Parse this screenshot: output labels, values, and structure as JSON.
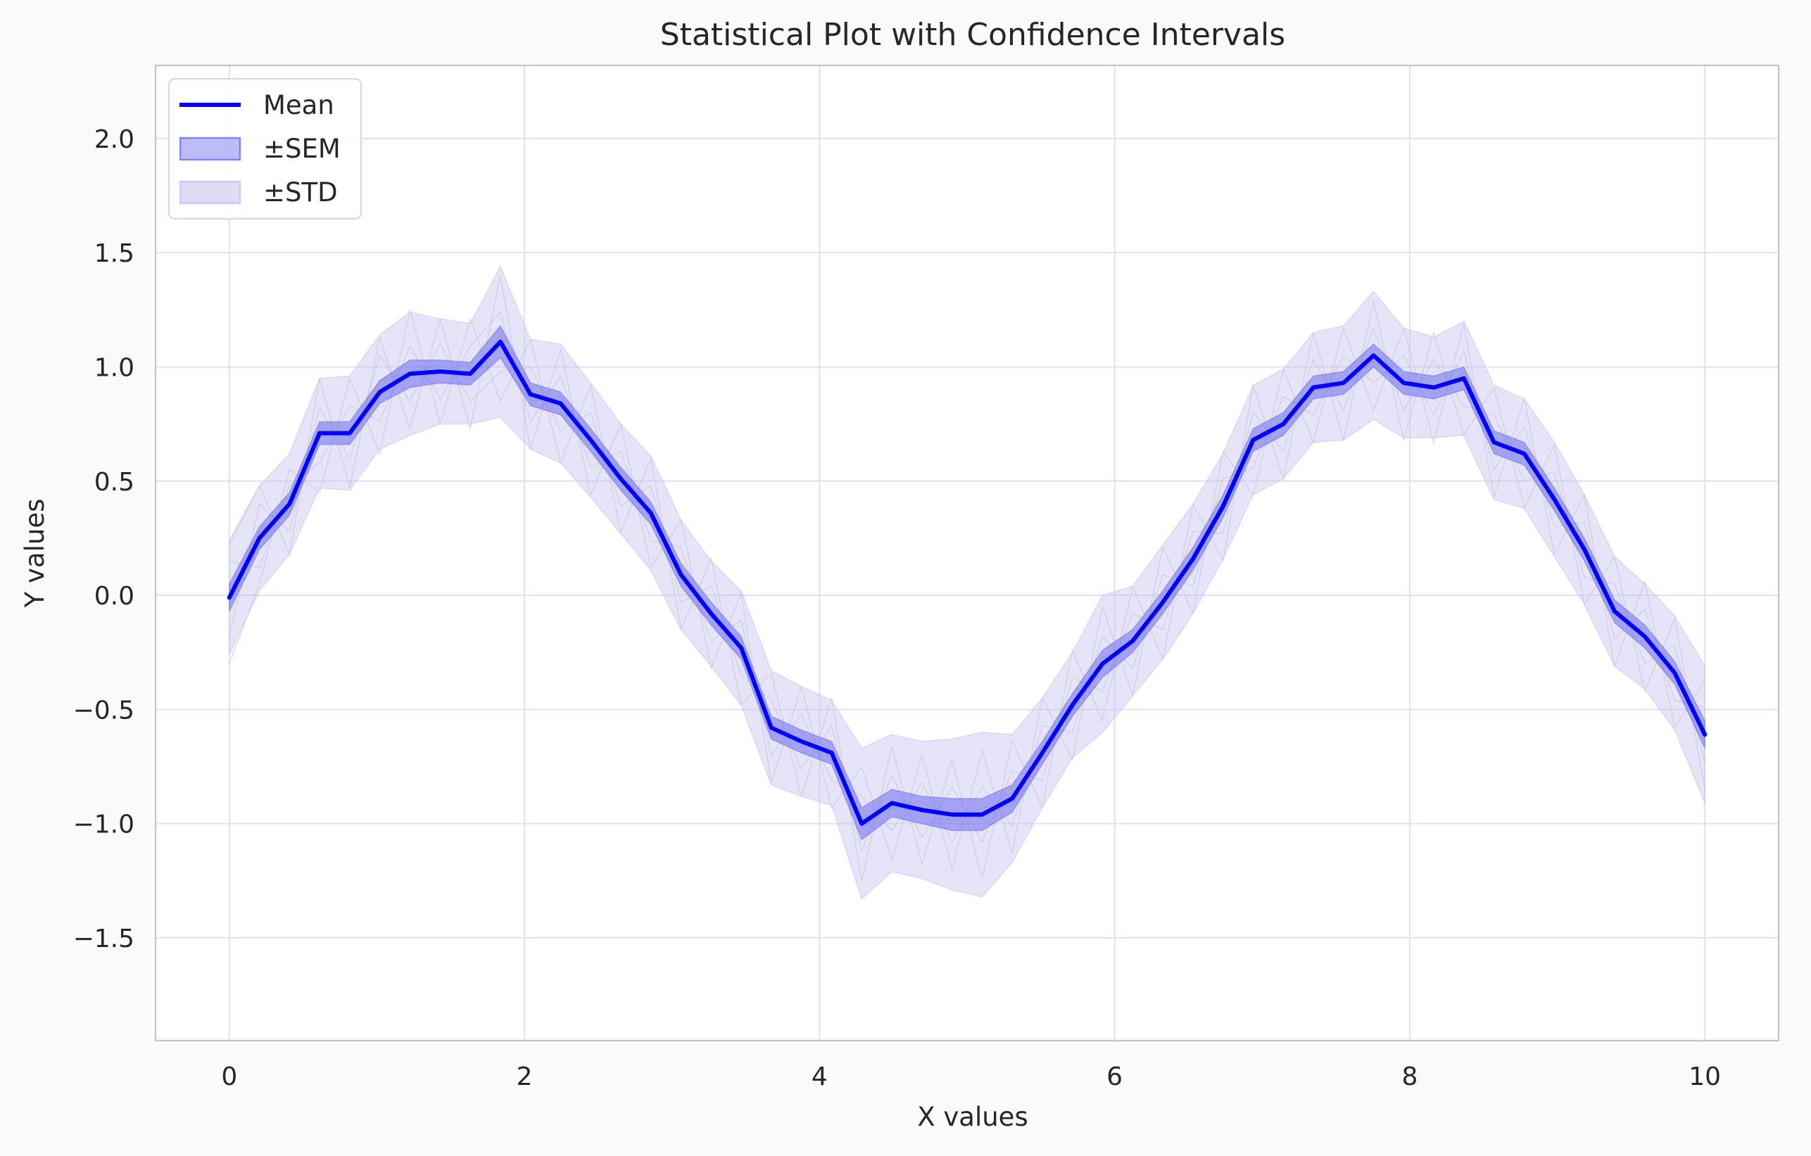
{
  "colors": {
    "background": "#fbfbfd",
    "plot_background": "#ffffff",
    "axes_edge": "#c4c4c8",
    "grid": "#e2e0f6",
    "mean_line": "#0000ff",
    "sem_fill": "#6b6bf0",
    "std_fill": "#c8c6ee",
    "trials": "#a8a6b6",
    "text": "#262626"
  },
  "chart_data": {
    "type": "line",
    "title": "Statistical Plot with Confidence Intervals",
    "xlabel": "X values",
    "ylabel": "Y values",
    "xlim": [
      -0.5,
      10.5
    ],
    "ylim": [
      -1.95,
      2.32
    ],
    "xticks": [
      0,
      2,
      4,
      6,
      8,
      10
    ],
    "xtick_labels": [
      "0",
      "2",
      "4",
      "6",
      "8",
      "10"
    ],
    "yticks": [
      -1.5,
      -1.0,
      -0.5,
      0.0,
      0.5,
      1.0,
      1.5,
      2.0
    ],
    "ytick_labels": [
      "−1.5",
      "−1.0",
      "−0.5",
      "0.0",
      "0.5",
      "1.0",
      "1.5",
      "2.0"
    ],
    "grid": true,
    "legend_position": "top-left",
    "legend": [
      {
        "label": "Mean",
        "kind": "line"
      },
      {
        "label": "±SEM",
        "kind": "sem"
      },
      {
        "label": "±STD",
        "kind": "std"
      }
    ],
    "x": [
      0.0,
      0.204,
      0.408,
      0.612,
      0.816,
      1.02,
      1.224,
      1.429,
      1.633,
      1.837,
      2.041,
      2.245,
      2.449,
      2.653,
      2.857,
      3.061,
      3.265,
      3.469,
      3.673,
      3.878,
      4.082,
      4.286,
      4.49,
      4.694,
      4.898,
      5.102,
      5.306,
      5.51,
      5.714,
      5.918,
      6.122,
      6.327,
      6.531,
      6.735,
      6.939,
      7.143,
      7.347,
      7.551,
      7.755,
      7.959,
      8.163,
      8.367,
      8.571,
      8.776,
      8.98,
      9.184,
      9.388,
      9.592,
      9.796,
      10.0
    ],
    "series": [
      {
        "name": "Mean",
        "values": [
          -0.01,
          0.25,
          0.4,
          0.71,
          0.71,
          0.89,
          0.97,
          0.98,
          0.97,
          1.11,
          0.88,
          0.84,
          0.68,
          0.51,
          0.36,
          0.09,
          -0.08,
          -0.23,
          -0.58,
          -0.64,
          -0.69,
          -1.0,
          -0.91,
          -0.94,
          -0.96,
          -0.96,
          -0.89,
          -0.69,
          -0.48,
          -0.3,
          -0.2,
          -0.03,
          0.16,
          0.39,
          0.68,
          0.75,
          0.91,
          0.93,
          1.05,
          0.93,
          0.91,
          0.95,
          0.67,
          0.62,
          0.42,
          0.2,
          -0.07,
          -0.18,
          -0.34,
          -0.61
        ]
      }
    ],
    "sem": [
      0.06,
      0.05,
      0.05,
      0.05,
      0.05,
      0.05,
      0.06,
      0.05,
      0.05,
      0.07,
      0.05,
      0.05,
      0.05,
      0.05,
      0.05,
      0.05,
      0.05,
      0.05,
      0.05,
      0.05,
      0.05,
      0.07,
      0.06,
      0.06,
      0.07,
      0.07,
      0.06,
      0.05,
      0.05,
      0.06,
      0.05,
      0.05,
      0.05,
      0.05,
      0.05,
      0.05,
      0.05,
      0.05,
      0.05,
      0.05,
      0.05,
      0.05,
      0.05,
      0.05,
      0.05,
      0.05,
      0.05,
      0.05,
      0.05,
      0.06
    ],
    "std": [
      0.25,
      0.23,
      0.22,
      0.24,
      0.25,
      0.25,
      0.27,
      0.23,
      0.22,
      0.33,
      0.24,
      0.26,
      0.25,
      0.24,
      0.25,
      0.24,
      0.23,
      0.25,
      0.25,
      0.24,
      0.23,
      0.33,
      0.3,
      0.3,
      0.33,
      0.36,
      0.28,
      0.24,
      0.23,
      0.3,
      0.24,
      0.25,
      0.24,
      0.23,
      0.24,
      0.24,
      0.24,
      0.25,
      0.28,
      0.24,
      0.22,
      0.25,
      0.25,
      0.24,
      0.25,
      0.24,
      0.24,
      0.23,
      0.25,
      0.3
    ],
    "trials": [
      [
        0.01,
        0.28,
        0.36,
        0.74,
        0.69,
        0.94,
        0.98,
        1.01,
        0.94,
        1.14,
        0.85,
        0.87,
        0.66,
        0.55,
        0.33,
        0.12,
        -0.1,
        -0.2,
        -0.61,
        -0.6,
        -0.72,
        -0.97,
        -0.94,
        -0.9,
        -0.99,
        -0.93,
        -0.92,
        -0.66,
        -0.51,
        -0.27,
        -0.23,
        0.0,
        0.13,
        0.42,
        0.65,
        0.78,
        0.88,
        0.96,
        1.02,
        0.96,
        0.88,
        0.98,
        0.64,
        0.65,
        0.39,
        0.23,
        -0.1,
        -0.15,
        -0.37,
        -0.58
      ],
      [
        -0.3,
        0.05,
        0.55,
        0.45,
        0.95,
        0.62,
        1.25,
        0.75,
        1.21,
        0.85,
        1.12,
        0.58,
        0.92,
        0.28,
        0.6,
        -0.15,
        0.16,
        -0.48,
        -0.34,
        -0.88,
        -0.45,
        -1.25,
        -0.66,
        -1.18,
        -0.72,
        -1.24,
        -0.64,
        -0.93,
        -0.24,
        -0.55,
        0.04,
        -0.28,
        0.4,
        0.15,
        0.92,
        0.51,
        1.15,
        0.68,
        1.29,
        0.68,
        1.15,
        0.7,
        0.91,
        0.38,
        0.66,
        -0.04,
        0.17,
        -0.42,
        -0.1,
        -0.85
      ],
      [
        0.22,
        0.48,
        0.18,
        0.95,
        0.47,
        1.13,
        0.73,
        1.21,
        0.73,
        1.4,
        0.64,
        1.08,
        0.44,
        0.75,
        0.12,
        0.33,
        -0.32,
        0.01,
        -0.82,
        -0.4,
        -0.93,
        -0.75,
        -1.16,
        -0.7,
        -1.2,
        -0.68,
        -1.13,
        -0.45,
        -0.72,
        -0.05,
        -0.44,
        0.21,
        -0.08,
        0.63,
        0.44,
        0.99,
        0.67,
        1.17,
        0.81,
        1.17,
        0.67,
        1.19,
        0.43,
        0.86,
        0.18,
        0.44,
        -0.31,
        0.06,
        -0.58,
        -0.37
      ],
      [
        -0.18,
        0.4,
        0.28,
        0.82,
        0.6,
        1.05,
        0.85,
        1.1,
        0.85,
        0.98,
        1.0,
        0.72,
        0.8,
        0.39,
        0.48,
        -0.03,
        0.04,
        -0.35,
        -0.46,
        -0.76,
        -0.57,
        -1.12,
        -0.79,
        -1.06,
        -0.84,
        -1.08,
        -0.77,
        -0.81,
        -0.36,
        -0.42,
        -0.08,
        -0.15,
        0.28,
        0.27,
        0.8,
        0.63,
        1.03,
        0.81,
        1.17,
        0.81,
        1.03,
        0.83,
        0.79,
        0.5,
        0.54,
        0.08,
        0.05,
        -0.3,
        -0.22,
        -0.73
      ],
      [
        0.15,
        0.12,
        0.48,
        0.58,
        0.83,
        0.76,
        1.09,
        0.86,
        1.09,
        1.24,
        0.76,
        0.96,
        0.56,
        0.63,
        0.24,
        0.21,
        -0.2,
        -0.11,
        -0.7,
        -0.52,
        -0.81,
        -0.88,
        -1.03,
        -0.82,
        -1.08,
        -0.84,
        -1.01,
        -0.57,
        -0.6,
        -0.18,
        -0.32,
        0.09,
        0.04,
        0.51,
        0.56,
        0.87,
        0.79,
        1.05,
        0.93,
        1.05,
        0.79,
        1.07,
        0.55,
        0.74,
        0.3,
        0.32,
        -0.19,
        -0.06,
        -0.46,
        -0.49
      ]
    ]
  }
}
